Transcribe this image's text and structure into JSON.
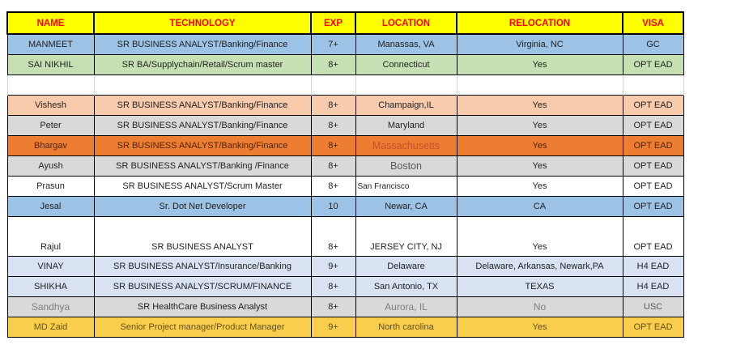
{
  "colors": {
    "header_bg": "#FFFF00",
    "header_text": "#FF0000",
    "grid_line": "#D4D4D4",
    "cell_border": "#000000"
  },
  "table": {
    "headers": [
      "NAME",
      "TECHNOLOGY",
      "EXP",
      "LOCATION",
      "RELOCATION",
      "VISA"
    ],
    "rows": [
      {
        "cells": {
          "name": "MANMEET",
          "technology": "SR BUSINESS ANALYST/Banking/Finance",
          "exp": "7+",
          "location": "Manassas, VA",
          "relocation": "Virginia, NC",
          "visa": "GC"
        },
        "bg": "#9CC2E5",
        "color": "#1f1f1f"
      },
      {
        "cells": {
          "name": "SAI NIKHIL",
          "technology": "SR BA/Supplychain/Retail/Scrum master",
          "exp": "8+",
          "location": "Connecticut",
          "relocation": "Yes",
          "visa": "OPT EAD"
        },
        "bg": "#C6E0B4",
        "color": "#1f1f1f"
      },
      {
        "empty": true,
        "cells": {
          "name": "",
          "technology": "",
          "exp": "",
          "location": "",
          "relocation": "",
          "visa": ""
        }
      },
      {
        "cells": {
          "name": "Vishesh",
          "technology": "SR BUSINESS ANALYST/Banking/Finance",
          "exp": "8+",
          "location": "Champaign,IL",
          "relocation": "Yes",
          "visa": "OPT EAD"
        },
        "bg": "#F8CBAD",
        "color": "#1f1f1f"
      },
      {
        "cells": {
          "name": "Peter",
          "technology": "SR BUSINESS ANALYST/Banking/Finance",
          "exp": "8+",
          "location": "Maryland",
          "relocation": "Yes",
          "visa": "OPT EAD"
        },
        "bg": "#D9D9D9",
        "color": "#1f1f1f"
      },
      {
        "cells": {
          "name": "Bhargav",
          "technology": "SR BUSINESS ANALYST/Banking/Finance",
          "exp": "8+",
          "location": "Massachusetts",
          "relocation": "Yes",
          "visa": "OPT EAD"
        },
        "bg": "#ED7D31",
        "color": "#4f2408",
        "cell_styles": {
          "location": "color:#C4502E;font-size:12.5px"
        }
      },
      {
        "cells": {
          "name": "Ayush",
          "technology": "SR BUSINESS ANALYST/Banking /Finance",
          "exp": "8+",
          "location": "Boston",
          "relocation": "Yes",
          "visa": "OPT EAD"
        },
        "bg": "#D9D9D9",
        "color": "#1f1f1f",
        "cell_styles": {
          "location": "color:#595959;font-size:12.5px"
        }
      },
      {
        "cells": {
          "name": "Prasun",
          "technology": "SR BUSINESS ANALYST/Scrum Master",
          "exp": "8+",
          "location": "San Francisco",
          "relocation": "Yes",
          "visa": "OPT EAD"
        },
        "bg": "#FFFFFF",
        "color": "#1f1f1f",
        "cell_styles": {
          "location": "font-size:10px;text-align:left;padding-left:2px"
        }
      },
      {
        "cells": {
          "name": "Jesal",
          "technology": "Sr. Dot Net Developer",
          "exp": "10",
          "location": "Newar, CA",
          "relocation": "CA",
          "visa": "OPT EAD"
        },
        "bg": "#9CC2E5",
        "color": "#1f1f1f"
      },
      {
        "cells": {
          "name": "Rajul",
          "technology": "SR BUSINESS ANALYST",
          "exp": "8+",
          "location": "JERSEY CITY, NJ",
          "relocation": "Yes",
          "visa": "OPT EAD"
        },
        "bg": "#FFFFFF",
        "color": "#1f1f1f",
        "h": 49,
        "valign": "bottom"
      },
      {
        "cells": {
          "name": "VINAY",
          "technology": "SR BUSINESS ANALYST/Insurance/Banking",
          "exp": "9+",
          "location": "Delaware",
          "relocation": "Delaware, Arkansas, Newark,PA",
          "visa": "H4 EAD"
        },
        "bg": "#D9E2F3",
        "color": "#1f1f1f"
      },
      {
        "cells": {
          "name": "SHIKHA",
          "technology": "SR BUSINESS ANALYST/SCRUM/FINANCE",
          "exp": "8+",
          "location": "San Antonio, TX",
          "relocation": "TEXAS",
          "visa": "H4 EAD"
        },
        "bg": "#D9E2F3",
        "color": "#1f1f1f"
      },
      {
        "cells": {
          "name": "Sandhya",
          "technology": "SR HealthCare Business Analyst",
          "exp": "8+",
          "location": "Aurora, IL",
          "relocation": "No",
          "visa": "USC"
        },
        "bg": "#D9D9D9",
        "color": "#1f1f1f",
        "cell_styles": {
          "name": "color:#7f7f7f;font-size:12px",
          "location": "color:#7f7f7f;font-size:12px",
          "relocation": "color:#7f7f7f;font-size:12px",
          "visa": "color:#595959"
        }
      },
      {
        "cells": {
          "name": "MD Zaid",
          "technology": "Senior Project manager/Product Manager",
          "exp": "9+",
          "location": "North carolina",
          "relocation": "Yes",
          "visa": "OPT EAD"
        },
        "bg": "#F9CE4D",
        "color": "#63511B"
      }
    ]
  }
}
